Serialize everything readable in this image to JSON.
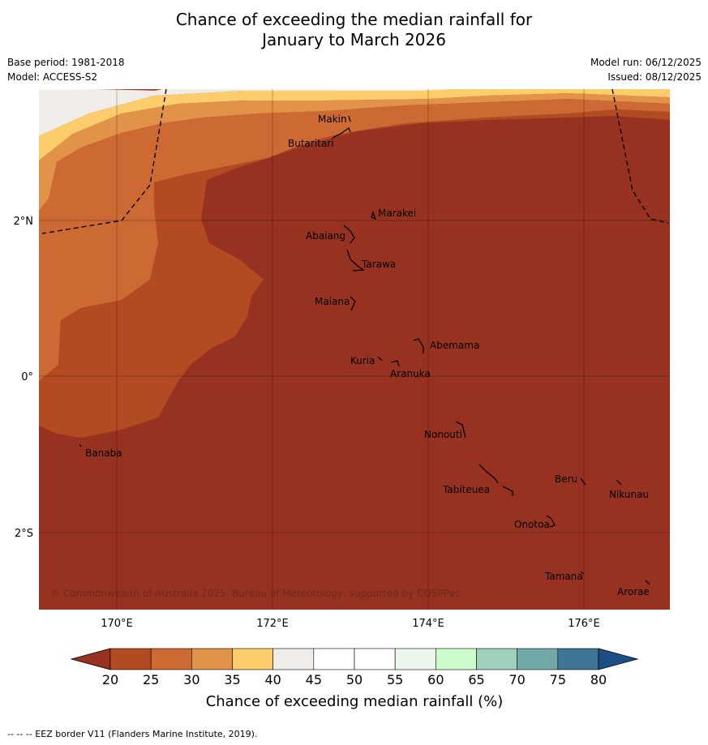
{
  "title_line1": "Chance of exceeding the median rainfall for",
  "title_line2": "January to March 2026",
  "base_period": "Base period: 1981-2018",
  "model": "Model: ACCESS-S2",
  "model_run": "Model run: 06/12/2025",
  "issued": "Issued: 08/12/2025",
  "copyright": "© Commonwealth of Australia 2025, Bureau of Meteorology, supported by COSPPac",
  "footer": "--  --  -- EEZ border V11 (Flanders Marine Institute, 2019).",
  "lon_ticks": [
    "170°E",
    "172°E",
    "174°E",
    "176°E"
  ],
  "lat_ticks": [
    "2°N",
    "0°",
    "2°S"
  ],
  "islands": [
    {
      "name": "Makin"
    },
    {
      "name": "Butaritari"
    },
    {
      "name": "Marakei"
    },
    {
      "name": "Abaiang"
    },
    {
      "name": "Tarawa"
    },
    {
      "name": "Maiana"
    },
    {
      "name": "Abemama"
    },
    {
      "name": "Kuria"
    },
    {
      "name": "Aranuka"
    },
    {
      "name": "Nonouti"
    },
    {
      "name": "Banaba"
    },
    {
      "name": "Beru"
    },
    {
      "name": "Nikunau"
    },
    {
      "name": "Tabiteuea"
    },
    {
      "name": "Onotoa"
    },
    {
      "name": "Tamana"
    },
    {
      "name": "Arorae"
    }
  ],
  "colorbar": {
    "title": "Chance of exceeding median rainfall (%)",
    "ticks": [
      "20",
      "25",
      "30",
      "35",
      "40",
      "45",
      "50",
      "55",
      "60",
      "65",
      "70",
      "75",
      "80"
    ],
    "colors": [
      "#b34a22",
      "#cd6a34",
      "#e19449",
      "#fdcc6b",
      "#f0ede8",
      "#ffffff",
      "#ffffff",
      "#edf6ec",
      "#ccfccc",
      "#9fd0bb",
      "#72a8a7",
      "#3f7596"
    ],
    "under_color": "#973220",
    "over_color": "#1b4f86"
  }
}
